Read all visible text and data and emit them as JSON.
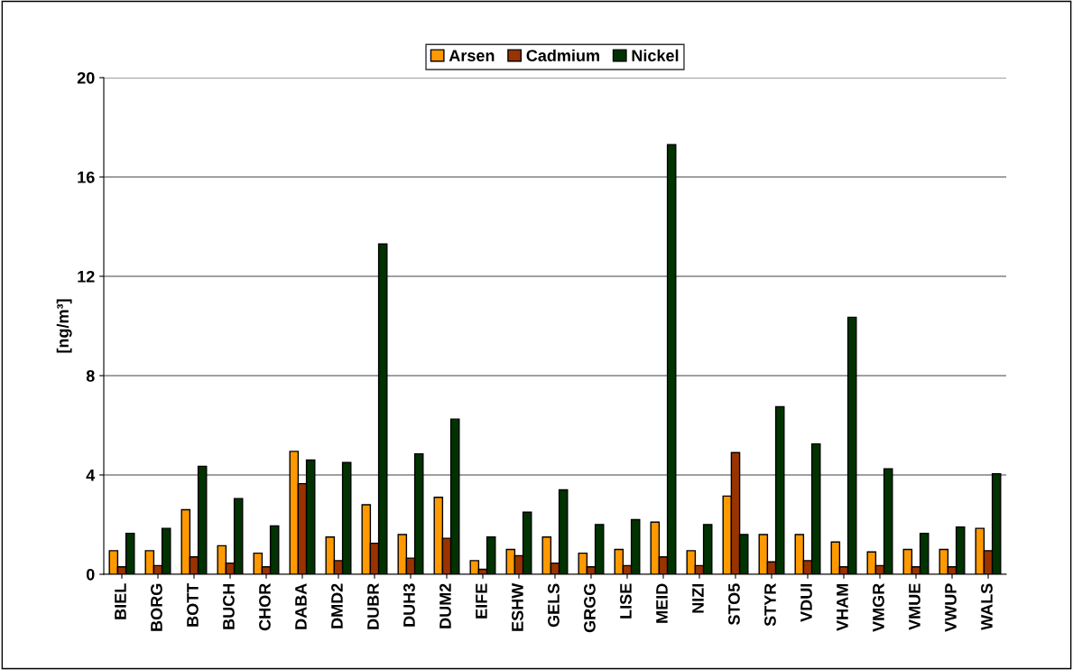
{
  "chart_data": {
    "type": "bar",
    "ylabel": "[ng/m³]",
    "categories": [
      "BIEL",
      "BORG",
      "BOTT",
      "BUCH",
      "CHOR",
      "DABA",
      "DMD2",
      "DUBR",
      "DUH3",
      "DUM2",
      "EIFE",
      "ESHW",
      "GELS",
      "GRGG",
      "LISE",
      "MEID",
      "NIZI",
      "STO5",
      "STYR",
      "VDUI",
      "VHAM",
      "VMGR",
      "VMUE",
      "VWUP",
      "WALS"
    ],
    "series": [
      {
        "name": "Arsen",
        "color": "#ff9900",
        "values": [
          0.95,
          0.95,
          2.6,
          1.15,
          0.85,
          4.95,
          1.5,
          2.8,
          1.6,
          3.1,
          0.55,
          1.0,
          1.5,
          0.85,
          1.0,
          2.1,
          0.95,
          3.15,
          1.6,
          1.6,
          1.3,
          0.9,
          1.0,
          1.0,
          1.85
        ]
      },
      {
        "name": "Cadmium",
        "color": "#993300",
        "values": [
          0.3,
          0.35,
          0.7,
          0.45,
          0.3,
          3.65,
          0.55,
          1.25,
          0.65,
          1.45,
          0.2,
          0.75,
          0.45,
          0.3,
          0.35,
          0.7,
          0.35,
          4.9,
          0.5,
          0.55,
          0.3,
          0.35,
          0.3,
          0.3,
          0.95
        ]
      },
      {
        "name": "Nickel",
        "color": "#003300",
        "values": [
          1.65,
          1.85,
          4.35,
          3.05,
          1.95,
          4.6,
          4.5,
          13.3,
          4.85,
          6.25,
          1.5,
          2.5,
          3.4,
          2.0,
          2.2,
          17.3,
          2.0,
          1.6,
          6.75,
          5.25,
          10.35,
          4.25,
          1.65,
          1.9,
          4.05
        ]
      }
    ],
    "ylim": [
      0,
      20
    ],
    "yticks": [
      0,
      4,
      8,
      12,
      16,
      20
    ],
    "grid": "y",
    "legend": "top"
  }
}
